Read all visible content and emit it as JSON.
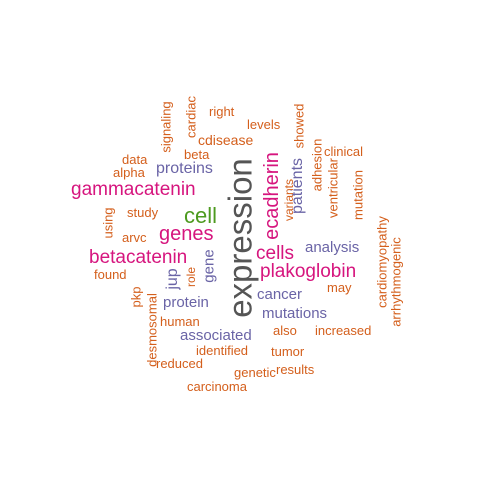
{
  "colors": {
    "gray": "#555555",
    "pink": "#d6157e",
    "green": "#4d9a1f",
    "purple": "#6a64a6",
    "orange": "#d45f1c"
  },
  "words": [
    {
      "text": "expression",
      "color": "gray",
      "vertical": true
    },
    {
      "text": "gammacatenin",
      "color": "pink",
      "vertical": false
    },
    {
      "text": "betacatenin",
      "color": "pink",
      "vertical": false
    },
    {
      "text": "genes",
      "color": "pink",
      "vertical": false
    },
    {
      "text": "cells",
      "color": "pink",
      "vertical": false
    },
    {
      "text": "plakoglobin",
      "color": "pink",
      "vertical": false
    },
    {
      "text": "ecadherin",
      "color": "pink",
      "vertical": true
    },
    {
      "text": "cell",
      "color": "green",
      "vertical": false
    },
    {
      "text": "proteins",
      "color": "purple",
      "vertical": false
    },
    {
      "text": "patients",
      "color": "purple",
      "vertical": true
    },
    {
      "text": "analysis",
      "color": "purple",
      "vertical": false
    },
    {
      "text": "cancer",
      "color": "purple",
      "vertical": false
    },
    {
      "text": "protein",
      "color": "purple",
      "vertical": false
    },
    {
      "text": "mutations",
      "color": "purple",
      "vertical": false
    },
    {
      "text": "associated",
      "color": "purple",
      "vertical": false
    },
    {
      "text": "gene",
      "color": "purple",
      "vertical": true
    },
    {
      "text": "jup",
      "color": "purple",
      "vertical": true
    },
    {
      "text": "signaling",
      "color": "orange",
      "vertical": true
    },
    {
      "text": "cardiac",
      "color": "orange",
      "vertical": true
    },
    {
      "text": "right",
      "color": "orange",
      "vertical": false
    },
    {
      "text": "levels",
      "color": "orange",
      "vertical": false
    },
    {
      "text": "showed",
      "color": "orange",
      "vertical": true
    },
    {
      "text": "cdisease",
      "color": "orange",
      "vertical": false
    },
    {
      "text": "clinical",
      "color": "orange",
      "vertical": false
    },
    {
      "text": "data",
      "color": "orange",
      "vertical": false
    },
    {
      "text": "beta",
      "color": "orange",
      "vertical": false
    },
    {
      "text": "alpha",
      "color": "orange",
      "vertical": false
    },
    {
      "text": "variants",
      "color": "orange",
      "vertical": true
    },
    {
      "text": "adhesion",
      "color": "orange",
      "vertical": true
    },
    {
      "text": "ventricular",
      "color": "orange",
      "vertical": true
    },
    {
      "text": "mutation",
      "color": "orange",
      "vertical": true
    },
    {
      "text": "study",
      "color": "orange",
      "vertical": false
    },
    {
      "text": "using",
      "color": "orange",
      "vertical": true
    },
    {
      "text": "arvc",
      "color": "orange",
      "vertical": false
    },
    {
      "text": "cardiomyopathy",
      "color": "orange",
      "vertical": true
    },
    {
      "text": "arrhythmogenic",
      "color": "orange",
      "vertical": true
    },
    {
      "text": "found",
      "color": "orange",
      "vertical": false
    },
    {
      "text": "role",
      "color": "orange",
      "vertical": true
    },
    {
      "text": "may",
      "color": "orange",
      "vertical": false
    },
    {
      "text": "pkp",
      "color": "orange",
      "vertical": true
    },
    {
      "text": "desmosomal",
      "color": "orange",
      "vertical": true
    },
    {
      "text": "human",
      "color": "orange",
      "vertical": false
    },
    {
      "text": "also",
      "color": "orange",
      "vertical": false
    },
    {
      "text": "increased",
      "color": "orange",
      "vertical": false
    },
    {
      "text": "identified",
      "color": "orange",
      "vertical": false
    },
    {
      "text": "tumor",
      "color": "orange",
      "vertical": false
    },
    {
      "text": "reduced",
      "color": "orange",
      "vertical": false
    },
    {
      "text": "genetic",
      "color": "orange",
      "vertical": false
    },
    {
      "text": "results",
      "color": "orange",
      "vertical": false
    },
    {
      "text": "carcinoma",
      "color": "orange",
      "vertical": false
    }
  ]
}
